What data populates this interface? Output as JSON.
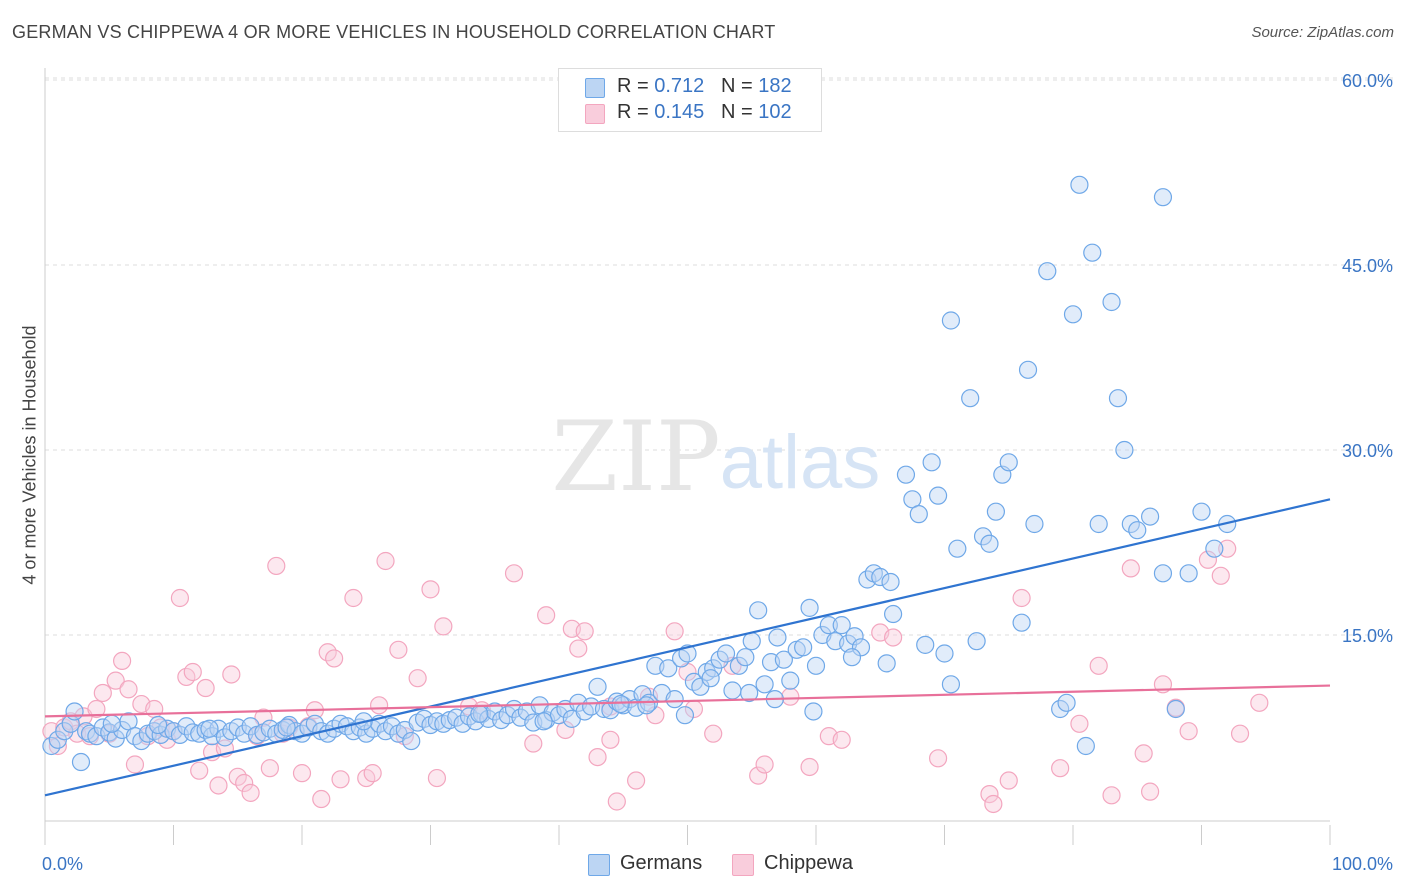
{
  "title": "GERMAN VS CHIPPEWA 4 OR MORE VEHICLES IN HOUSEHOLD CORRELATION CHART",
  "source": "Source: ZipAtlas.com",
  "watermark": {
    "zip": "ZIP",
    "atlas": "atlas"
  },
  "legend": {
    "rows": [
      {
        "r_label": "R = ",
        "r_value": "0.712",
        "n_label": "N = ",
        "n_value": "182"
      },
      {
        "r_label": "R = ",
        "r_value": "0.145",
        "n_label": "N = ",
        "n_value": "102"
      }
    ]
  },
  "chart_data": {
    "type": "scatter",
    "title": "GERMAN VS CHIPPEWA 4 OR MORE VEHICLES IN HOUSEHOLD CORRELATION CHART",
    "xlabel": "",
    "ylabel": "4 or more Vehicles in Household",
    "xlim": [
      0,
      100
    ],
    "ylim": [
      0,
      60
    ],
    "x_tick_labels": [
      "0.0%",
      "100.0%"
    ],
    "y_tick_labels": [
      "15.0%",
      "30.0%",
      "45.0%",
      "60.0%"
    ],
    "y_ticks": [
      15,
      30,
      45,
      60
    ],
    "grid": true,
    "legend_position": "top-center",
    "series": [
      {
        "name": "Germans",
        "color": "#6fa8e8",
        "line_color": "#2f74d0",
        "r": 0.712,
        "n": 182,
        "trend": {
          "x": [
            0,
            100
          ],
          "y": [
            2.0,
            26.0
          ]
        },
        "points": [
          [
            0.5,
            6.0
          ],
          [
            1.0,
            6.5
          ],
          [
            1.5,
            7.2
          ],
          [
            2.0,
            7.8
          ],
          [
            2.3,
            8.8
          ],
          [
            2.8,
            4.7
          ],
          [
            3.2,
            7.2
          ],
          [
            3.5,
            7.0
          ],
          [
            4.0,
            6.8
          ],
          [
            4.5,
            7.5
          ],
          [
            5.0,
            7.1
          ],
          [
            5.5,
            6.6
          ],
          [
            6.0,
            7.3
          ],
          [
            6.5,
            8.0
          ],
          [
            7.0,
            6.8
          ],
          [
            7.5,
            6.4
          ],
          [
            8.0,
            7.0
          ],
          [
            8.5,
            7.2
          ],
          [
            9.0,
            6.9
          ],
          [
            9.5,
            7.4
          ],
          [
            10.0,
            7.2
          ],
          [
            10.5,
            6.9
          ],
          [
            11.0,
            7.6
          ],
          [
            11.5,
            7.1
          ],
          [
            12.0,
            7.0
          ],
          [
            12.5,
            7.3
          ],
          [
            13.0,
            6.8
          ],
          [
            13.5,
            7.4
          ],
          [
            14.0,
            6.7
          ],
          [
            14.5,
            7.2
          ],
          [
            15.0,
            7.5
          ],
          [
            15.5,
            7.0
          ],
          [
            16.0,
            7.6
          ],
          [
            16.5,
            6.9
          ],
          [
            17.0,
            7.1
          ],
          [
            17.5,
            7.4
          ],
          [
            18.0,
            7.0
          ],
          [
            18.5,
            7.3
          ],
          [
            19.0,
            7.7
          ],
          [
            19.5,
            7.2
          ],
          [
            20.0,
            7.0
          ],
          [
            20.5,
            7.5
          ],
          [
            21.0,
            7.8
          ],
          [
            21.5,
            7.2
          ],
          [
            22.0,
            7.0
          ],
          [
            22.5,
            7.4
          ],
          [
            23.0,
            7.8
          ],
          [
            23.5,
            7.6
          ],
          [
            24.0,
            7.2
          ],
          [
            24.5,
            7.5
          ],
          [
            25.0,
            7.0
          ],
          [
            25.5,
            7.4
          ],
          [
            26.0,
            7.8
          ],
          [
            26.5,
            7.2
          ],
          [
            27.0,
            7.6
          ],
          [
            27.5,
            7.0
          ],
          [
            28.0,
            7.3
          ],
          [
            28.5,
            6.4
          ],
          [
            29.0,
            7.9
          ],
          [
            29.5,
            8.2
          ],
          [
            30.0,
            7.7
          ],
          [
            30.5,
            8.0
          ],
          [
            31.0,
            7.8
          ],
          [
            31.5,
            8.1
          ],
          [
            32.0,
            8.3
          ],
          [
            32.5,
            7.8
          ],
          [
            33.0,
            8.4
          ],
          [
            33.5,
            8.0
          ],
          [
            34.0,
            8.6
          ],
          [
            34.5,
            8.2
          ],
          [
            35.0,
            8.8
          ],
          [
            35.5,
            8.1
          ],
          [
            36.0,
            8.5
          ],
          [
            36.5,
            9.0
          ],
          [
            37.0,
            8.3
          ],
          [
            37.5,
            8.8
          ],
          [
            38.0,
            7.9
          ],
          [
            38.5,
            9.3
          ],
          [
            39.0,
            8.1
          ],
          [
            39.5,
            8.7
          ],
          [
            40.0,
            8.5
          ],
          [
            40.5,
            9.0
          ],
          [
            41.0,
            8.2
          ],
          [
            41.5,
            9.5
          ],
          [
            42.0,
            8.8
          ],
          [
            42.5,
            9.2
          ],
          [
            43.0,
            10.8
          ],
          [
            43.5,
            9.0
          ],
          [
            44.0,
            8.9
          ],
          [
            44.5,
            9.6
          ],
          [
            45.0,
            9.3
          ],
          [
            45.5,
            9.8
          ],
          [
            46.0,
            9.1
          ],
          [
            46.5,
            10.2
          ],
          [
            47.0,
            9.5
          ],
          [
            47.5,
            12.5
          ],
          [
            48.0,
            10.3
          ],
          [
            48.5,
            12.3
          ],
          [
            49.0,
            9.8
          ],
          [
            49.5,
            13.1
          ],
          [
            50.0,
            13.5
          ],
          [
            50.5,
            11.2
          ],
          [
            51.0,
            10.8
          ],
          [
            51.5,
            12.0
          ],
          [
            52.0,
            12.3
          ],
          [
            52.5,
            13.0
          ],
          [
            53.0,
            13.5
          ],
          [
            53.5,
            10.5
          ],
          [
            54.0,
            12.5
          ],
          [
            54.5,
            13.2
          ],
          [
            55.0,
            14.5
          ],
          [
            55.5,
            17.0
          ],
          [
            56.0,
            11.0
          ],
          [
            56.5,
            12.8
          ],
          [
            57.0,
            14.8
          ],
          [
            57.5,
            13.0
          ],
          [
            58.0,
            11.3
          ],
          [
            58.5,
            13.8
          ],
          [
            59.0,
            14.0
          ],
          [
            59.5,
            17.2
          ],
          [
            60.0,
            12.5
          ],
          [
            60.5,
            15.0
          ],
          [
            61.0,
            15.8
          ],
          [
            61.5,
            14.5
          ],
          [
            62.0,
            15.8
          ],
          [
            62.5,
            14.3
          ],
          [
            63.0,
            14.9
          ],
          [
            63.5,
            14.0
          ],
          [
            64.0,
            19.5
          ],
          [
            64.5,
            20.0
          ],
          [
            65.0,
            19.7
          ],
          [
            65.5,
            12.7
          ],
          [
            66.0,
            16.7
          ],
          [
            67.0,
            28.0
          ],
          [
            67.5,
            26.0
          ],
          [
            68.0,
            24.8
          ],
          [
            68.5,
            14.2
          ],
          [
            69.0,
            29.0
          ],
          [
            69.5,
            26.3
          ],
          [
            70.0,
            13.5
          ],
          [
            70.5,
            40.5
          ],
          [
            70.5,
            11.0
          ],
          [
            71.0,
            22.0
          ],
          [
            72.0,
            34.2
          ],
          [
            72.5,
            14.5
          ],
          [
            73.0,
            23.0
          ],
          [
            73.5,
            22.4
          ],
          [
            74.0,
            25.0
          ],
          [
            74.5,
            28.0
          ],
          [
            75.0,
            29.0
          ],
          [
            76.0,
            16.0
          ],
          [
            76.5,
            36.5
          ],
          [
            77.0,
            24.0
          ],
          [
            78.0,
            44.5
          ],
          [
            79.0,
            9.0
          ],
          [
            79.5,
            9.5
          ],
          [
            80.0,
            41.0
          ],
          [
            81.0,
            6.0
          ],
          [
            81.5,
            46.0
          ],
          [
            82.0,
            24.0
          ],
          [
            83.0,
            42.0
          ],
          [
            83.5,
            34.2
          ],
          [
            84.0,
            30.0
          ],
          [
            84.5,
            24.0
          ],
          [
            85.0,
            23.5
          ],
          [
            86.0,
            24.6
          ],
          [
            87.0,
            20.0
          ],
          [
            87.0,
            50.5
          ],
          [
            88.0,
            9.0
          ],
          [
            89.0,
            20.0
          ],
          [
            90.0,
            25.0
          ],
          [
            91.0,
            22.0
          ],
          [
            92.0,
            24.0
          ],
          [
            5.2,
            7.8
          ],
          [
            8.8,
            7.7
          ],
          [
            12.8,
            7.4
          ],
          [
            18.8,
            7.5
          ],
          [
            24.8,
            8.0
          ],
          [
            33.8,
            8.6
          ],
          [
            38.8,
            8.0
          ],
          [
            44.8,
            9.4
          ],
          [
            46.8,
            9.3
          ],
          [
            49.8,
            8.5
          ],
          [
            51.8,
            11.5
          ],
          [
            54.8,
            10.3
          ],
          [
            56.8,
            9.8
          ],
          [
            59.8,
            8.8
          ],
          [
            62.8,
            13.2
          ],
          [
            65.8,
            19.3
          ],
          [
            80.5,
            51.5
          ]
        ]
      },
      {
        "name": "Chippewa",
        "color": "#f3a6bf",
        "line_color": "#e8709a",
        "r": 0.145,
        "n": 102,
        "trend": {
          "x": [
            0,
            100
          ],
          "y": [
            8.4,
            10.9
          ]
        },
        "points": [
          [
            0.5,
            7.2
          ],
          [
            1.0,
            6.0
          ],
          [
            1.5,
            7.5
          ],
          [
            2.0,
            8.0
          ],
          [
            2.5,
            7.0
          ],
          [
            3.0,
            8.4
          ],
          [
            3.5,
            6.8
          ],
          [
            4.0,
            9.0
          ],
          [
            4.5,
            10.3
          ],
          [
            5.0,
            7.0
          ],
          [
            5.5,
            11.3
          ],
          [
            6.0,
            12.9
          ],
          [
            6.5,
            10.6
          ],
          [
            7.0,
            4.5
          ],
          [
            7.5,
            9.4
          ],
          [
            8.0,
            6.8
          ],
          [
            8.5,
            9.0
          ],
          [
            9.0,
            7.5
          ],
          [
            9.5,
            6.5
          ],
          [
            10.0,
            7.2
          ],
          [
            10.5,
            18.0
          ],
          [
            11.0,
            11.6
          ],
          [
            11.5,
            12.0
          ],
          [
            12.0,
            4.0
          ],
          [
            12.5,
            10.7
          ],
          [
            13.0,
            5.5
          ],
          [
            13.5,
            2.8
          ],
          [
            14.0,
            5.8
          ],
          [
            14.5,
            11.8
          ],
          [
            15.0,
            3.5
          ],
          [
            15.5,
            3.0
          ],
          [
            16.0,
            2.2
          ],
          [
            16.5,
            6.8
          ],
          [
            17.0,
            8.3
          ],
          [
            17.5,
            4.2
          ],
          [
            18.0,
            20.6
          ],
          [
            18.5,
            7.0
          ],
          [
            19.0,
            7.5
          ],
          [
            20.0,
            3.8
          ],
          [
            20.5,
            7.6
          ],
          [
            21.0,
            8.9
          ],
          [
            21.5,
            1.7
          ],
          [
            22.0,
            13.6
          ],
          [
            22.5,
            13.1
          ],
          [
            23.0,
            3.3
          ],
          [
            24.0,
            18.0
          ],
          [
            25.0,
            3.4
          ],
          [
            25.5,
            3.8
          ],
          [
            26.0,
            9.3
          ],
          [
            26.5,
            21.0
          ],
          [
            27.5,
            13.8
          ],
          [
            28.0,
            6.8
          ],
          [
            29.0,
            11.5
          ],
          [
            30.0,
            18.7
          ],
          [
            30.5,
            3.4
          ],
          [
            31.0,
            15.7
          ],
          [
            33.0,
            9.2
          ],
          [
            34.0,
            8.9
          ],
          [
            36.5,
            20.0
          ],
          [
            38.0,
            6.2
          ],
          [
            39.0,
            16.6
          ],
          [
            40.5,
            7.3
          ],
          [
            41.0,
            15.5
          ],
          [
            41.5,
            13.9
          ],
          [
            42.0,
            15.3
          ],
          [
            43.0,
            5.1
          ],
          [
            44.0,
            9.2
          ],
          [
            44.5,
            1.5
          ],
          [
            44.0,
            6.5
          ],
          [
            46.0,
            3.2
          ],
          [
            47.0,
            10.0
          ],
          [
            47.5,
            8.5
          ],
          [
            49.0,
            15.3
          ],
          [
            50.0,
            12.0
          ],
          [
            50.5,
            9.0
          ],
          [
            52.0,
            7.0
          ],
          [
            53.5,
            12.5
          ],
          [
            55.5,
            3.6
          ],
          [
            56.0,
            4.5
          ],
          [
            58.0,
            10.0
          ],
          [
            59.5,
            4.3
          ],
          [
            61.0,
            6.8
          ],
          [
            62.0,
            6.5
          ],
          [
            65.0,
            15.2
          ],
          [
            66.0,
            14.8
          ],
          [
            69.5,
            5.0
          ],
          [
            73.5,
            2.1
          ],
          [
            73.8,
            1.3
          ],
          [
            75.0,
            3.2
          ],
          [
            76.0,
            18.0
          ],
          [
            79.0,
            4.2
          ],
          [
            80.5,
            7.8
          ],
          [
            82.0,
            12.5
          ],
          [
            83.0,
            2.0
          ],
          [
            84.5,
            20.4
          ],
          [
            85.5,
            5.4
          ],
          [
            86.0,
            2.3
          ],
          [
            87.0,
            11.0
          ],
          [
            88.0,
            9.1
          ],
          [
            89.0,
            7.2
          ],
          [
            90.5,
            21.1
          ],
          [
            91.5,
            19.8
          ],
          [
            92.0,
            22.0
          ],
          [
            93.0,
            7.0
          ],
          [
            94.5,
            9.5
          ]
        ]
      }
    ]
  }
}
